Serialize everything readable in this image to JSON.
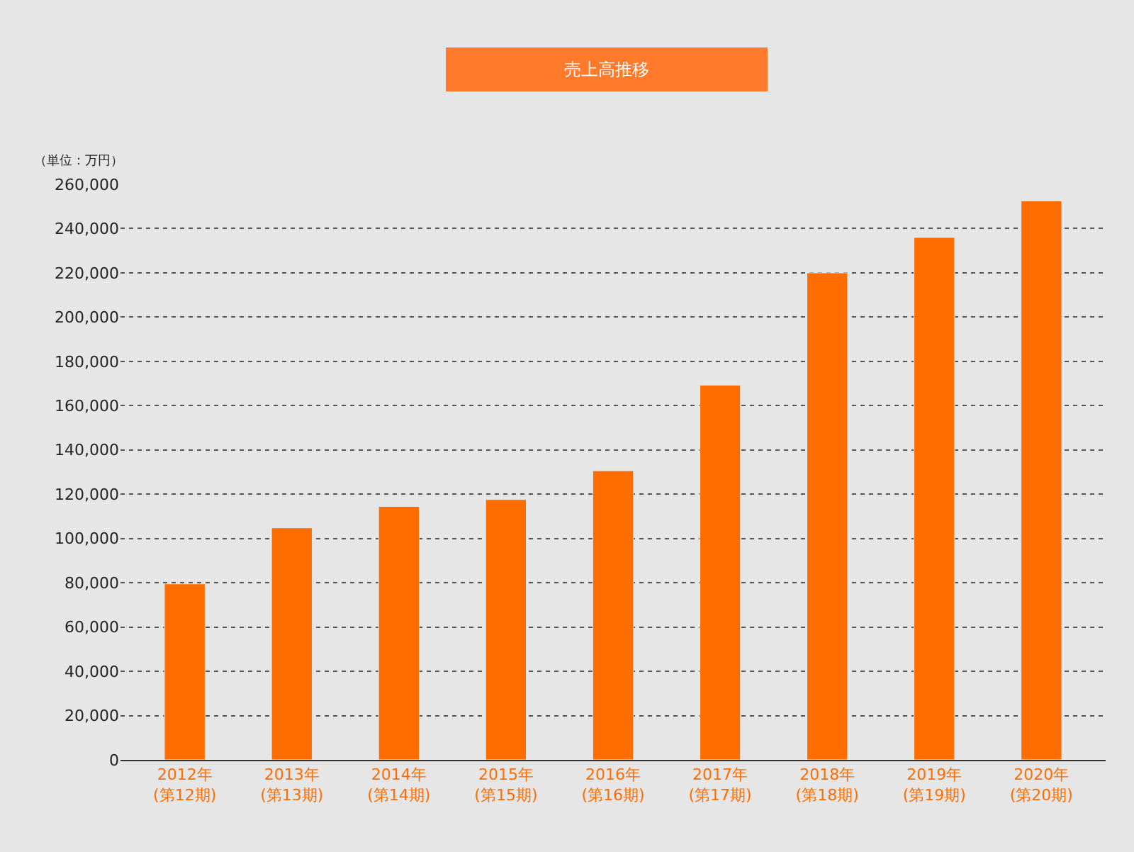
{
  "chart_data": {
    "type": "bar",
    "title": "売上高推移",
    "ylabel": "（単位：万円）",
    "categories": [
      "2012年\n(第12期)",
      "2013年\n(第13期)",
      "2014年\n(第14期)",
      "2015年\n(第15期)",
      "2016年\n(第16期)",
      "2017年\n(第17期)",
      "2018年\n(第18期)",
      "2019年\n(第19期)",
      "2020年\n(第20期)"
    ],
    "values": [
      79500,
      104800,
      114500,
      117600,
      130600,
      169300,
      220000,
      236000,
      252500
    ],
    "color": "#ff6c00",
    "ylim": [
      0,
      260000
    ],
    "yticks": [
      0,
      {
        "value": 20000,
        "label": "20,000"
      },
      {
        "value": 40000,
        "label": "40,000"
      },
      {
        "value": 60000,
        "label": "60,000"
      },
      {
        "value": 80000,
        "label": "80,000"
      },
      {
        "value": 100000,
        "label": "100,000"
      },
      {
        "value": 120000,
        "label": "120,000"
      },
      {
        "value": 140000,
        "label": "140,000"
      },
      {
        "value": 160000,
        "label": "160,000"
      },
      {
        "value": 180000,
        "label": "180,000"
      },
      {
        "value": 200000,
        "label": "200,000"
      },
      {
        "value": 220000,
        "label": "220,000"
      },
      {
        "value": 240000,
        "label": "240,000"
      },
      {
        "value": 260000,
        "label": "260,000"
      }
    ],
    "grid": "y"
  }
}
